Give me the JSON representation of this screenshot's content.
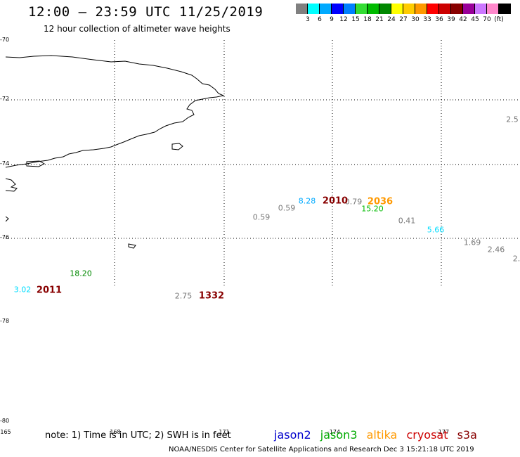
{
  "title": "12:00 — 23:59 UTC 11/25/2019",
  "subtitle": "12 hour collection of altimeter wave heights",
  "color_scale": {
    "colors": [
      "#808080",
      "#00ffff",
      "#00aaff",
      "#0000ff",
      "#0080ff",
      "#33dd33",
      "#00bb00",
      "#008800",
      "#ffff00",
      "#ffcc00",
      "#ff9900",
      "#ff0000",
      "#cc0000",
      "#880000",
      "#990099",
      "#cc77ff",
      "#ff88cc",
      "#000000"
    ],
    "labels": [
      "3",
      "6",
      "9",
      "12",
      "15",
      "18",
      "21",
      "24",
      "27",
      "30",
      "33",
      "36",
      "39",
      "42",
      "45",
      "70",
      "(ft)"
    ]
  },
  "lat_labels": [
    "-70",
    "-72",
    "-74",
    "-76",
    "-78",
    "-80"
  ],
  "lon_labels": [
    "165",
    "168",
    "171",
    "-174",
    "-177"
  ],
  "observations": [
    {
      "text": "2.5",
      "color": "#777777"
    },
    {
      "text": "8.28",
      "color": "#00aaff"
    },
    {
      "text": "0.79",
      "color": "#777777"
    },
    {
      "text": "0.59",
      "color": "#777777"
    },
    {
      "text": "15.20",
      "color": "#00bb00"
    },
    {
      "text": "0.59",
      "color": "#777777"
    },
    {
      "text": "0.41",
      "color": "#777777"
    },
    {
      "text": "5.66",
      "color": "#00ddff"
    },
    {
      "text": "1.69",
      "color": "#777777"
    },
    {
      "text": "2.46",
      "color": "#777777"
    },
    {
      "text": "2.",
      "color": "#777777"
    },
    {
      "text": "18.20",
      "color": "#008800"
    },
    {
      "text": "3.02",
      "color": "#00ddff"
    },
    {
      "text": "2.75",
      "color": "#777777"
    }
  ],
  "passes": [
    {
      "text": "2010",
      "color": "#880000"
    },
    {
      "text": "2036",
      "color": "#ff9900"
    },
    {
      "text": "2011",
      "color": "#880000"
    },
    {
      "text": "1332",
      "color": "#880000"
    }
  ],
  "note": "note:  1) Time is in UTC; 2) SWH is in feet",
  "legend": [
    {
      "text": "jason2",
      "color": "#0000cc"
    },
    {
      "text": "jason3",
      "color": "#00aa00"
    },
    {
      "text": "altika",
      "color": "#ff9900"
    },
    {
      "text": "cryosat",
      "color": "#cc0000"
    },
    {
      "text": "s3a",
      "color": "#880000"
    }
  ],
  "footer": "NOAA/NESDIS Center for Satellite Applications and Research    Dec  3 15:21:18 UTC 2019"
}
